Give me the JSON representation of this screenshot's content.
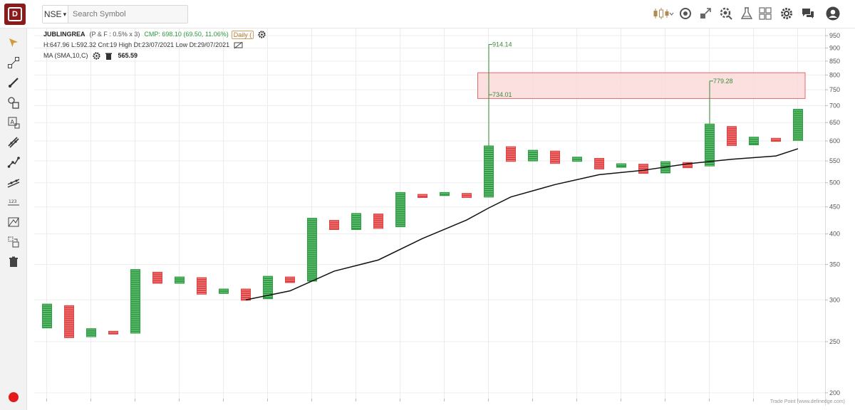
{
  "topbar": {
    "exchange": "NSE",
    "search_placeholder": "Search Symbol"
  },
  "legend": {
    "symbol": "JUBLINGREA",
    "pf_info": "(P & F : 0.5% x 3)",
    "cmp": "CMP: 698.10 (69.50, 11.06%)",
    "timeframe": "Daily (",
    "stats": "H:647.96 L:592.32 Cnt:19 High Dt:23/07/2021 Low Dt:29/07/2021",
    "ma_label": "MA (SMA,10,C)",
    "ma_value": "565.59"
  },
  "footer": {
    "credit": "Trade Point (www.definedge.com)"
  },
  "colors": {
    "up": "#2ea043",
    "down": "#e04444",
    "ma_line": "#111111",
    "zone_fill": "#fbdada",
    "zone_stroke": "#e06a6a",
    "annotation": "#3c8a3c"
  },
  "chart_data": {
    "type": "point-and-figure",
    "scale": "log",
    "ylim": [
      195,
      980
    ],
    "y_ticks": [
      200,
      250,
      300,
      350,
      400,
      450,
      500,
      550,
      600,
      650,
      700,
      750,
      800,
      850,
      900,
      950
    ],
    "columns": [
      {
        "dir": "up",
        "low": 265,
        "high": 295
      },
      {
        "dir": "down",
        "low": 254,
        "high": 293
      },
      {
        "dir": "up",
        "low": 255,
        "high": 265
      },
      {
        "dir": "down",
        "low": 258,
        "high": 262
      },
      {
        "dir": "up",
        "low": 259,
        "high": 343
      },
      {
        "dir": "down",
        "low": 322,
        "high": 339
      },
      {
        "dir": "up",
        "low": 322,
        "high": 332
      },
      {
        "dir": "down",
        "low": 307,
        "high": 331
      },
      {
        "dir": "up",
        "low": 308,
        "high": 315
      },
      {
        "dir": "down",
        "low": 299,
        "high": 315
      },
      {
        "dir": "up",
        "low": 301,
        "high": 333
      },
      {
        "dir": "down",
        "low": 323,
        "high": 332
      },
      {
        "dir": "up",
        "low": 325,
        "high": 429
      },
      {
        "dir": "down",
        "low": 407,
        "high": 425
      },
      {
        "dir": "up",
        "low": 407,
        "high": 438
      },
      {
        "dir": "down",
        "low": 409,
        "high": 437
      },
      {
        "dir": "up",
        "low": 412,
        "high": 480
      },
      {
        "dir": "down",
        "low": 468,
        "high": 476
      },
      {
        "dir": "up",
        "low": 472,
        "high": 480
      },
      {
        "dir": "down",
        "low": 468,
        "high": 478
      },
      {
        "dir": "up",
        "low": 469,
        "high": 588
      },
      {
        "dir": "down",
        "low": 548,
        "high": 586
      },
      {
        "dir": "up",
        "low": 549,
        "high": 577
      },
      {
        "dir": "down",
        "low": 543,
        "high": 575
      },
      {
        "dir": "up",
        "low": 548,
        "high": 560
      },
      {
        "dir": "down",
        "low": 530,
        "high": 557
      },
      {
        "dir": "up",
        "low": 534,
        "high": 544
      },
      {
        "dir": "down",
        "low": 520,
        "high": 543
      },
      {
        "dir": "up",
        "low": 521,
        "high": 549
      },
      {
        "dir": "down",
        "low": 533,
        "high": 547
      },
      {
        "dir": "up",
        "low": 537,
        "high": 647
      },
      {
        "dir": "down",
        "low": 587,
        "high": 640
      },
      {
        "dir": "up",
        "low": 589,
        "high": 611
      },
      {
        "dir": "down",
        "low": 598,
        "high": 608
      },
      {
        "dir": "up",
        "low": 600,
        "high": 690
      }
    ],
    "ma_series": [
      {
        "col": 9,
        "value": 300
      },
      {
        "col": 11,
        "value": 312
      },
      {
        "col": 13,
        "value": 340
      },
      {
        "col": 15,
        "value": 357
      },
      {
        "col": 17,
        "value": 392
      },
      {
        "col": 19,
        "value": 425
      },
      {
        "col": 20,
        "value": 448
      },
      {
        "col": 21,
        "value": 470
      },
      {
        "col": 23,
        "value": 496
      },
      {
        "col": 25,
        "value": 518
      },
      {
        "col": 27,
        "value": 528
      },
      {
        "col": 29,
        "value": 543
      },
      {
        "col": 31,
        "value": 554
      },
      {
        "col": 33,
        "value": 562
      },
      {
        "col": 34,
        "value": 580
      }
    ],
    "annotations": [
      {
        "col": 20,
        "from": 588,
        "to": 914.14,
        "label": "914.14"
      },
      {
        "col": 20,
        "at": 734.01,
        "label": "734.01"
      },
      {
        "col": 30,
        "from": 647,
        "to": 779.28,
        "label": "779.28"
      }
    ],
    "zone": {
      "col_start": 19.5,
      "col_end": 34,
      "low": 722,
      "high": 808
    }
  }
}
